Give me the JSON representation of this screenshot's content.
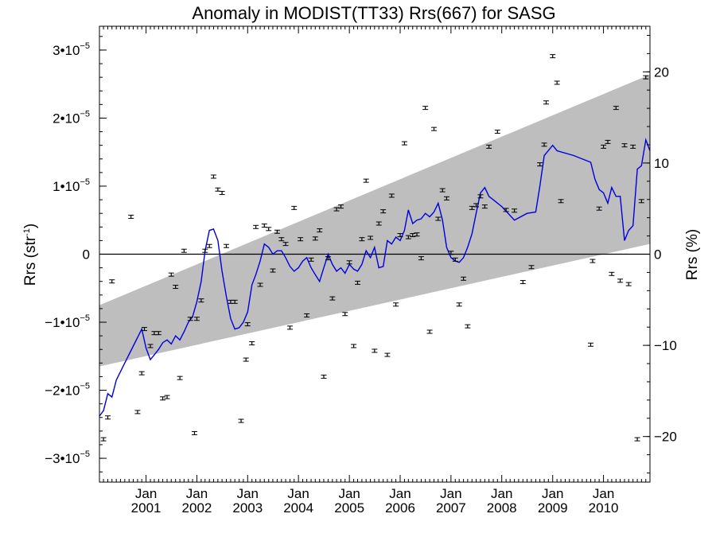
{
  "chart_data": {
    "type": "scatter",
    "title": "Anomaly in MODIST(TT33) Rrs(667) for SASG",
    "ylabel_left": {
      "base": "Rrs (str",
      "sup": "-1",
      "end": ")"
    },
    "ylabel_right": "Rrs (%)",
    "x_range": [
      "2000-02-01",
      "2010-12-01"
    ],
    "y_range": [
      -3.35e-05,
      3.35e-05
    ],
    "y2_range": [
      -25,
      25
    ],
    "x_ticks": [
      {
        "date": "2001-01-01",
        "month": "Jan",
        "year": "2001"
      },
      {
        "date": "2002-01-01",
        "month": "Jan",
        "year": "2002"
      },
      {
        "date": "2003-01-01",
        "month": "Jan",
        "year": "2003"
      },
      {
        "date": "2004-01-01",
        "month": "Jan",
        "year": "2004"
      },
      {
        "date": "2005-01-01",
        "month": "Jan",
        "year": "2005"
      },
      {
        "date": "2006-01-01",
        "month": "Jan",
        "year": "2006"
      },
      {
        "date": "2007-01-01",
        "month": "Jan",
        "year": "2007"
      },
      {
        "date": "2008-01-01",
        "month": "Jan",
        "year": "2008"
      },
      {
        "date": "2009-01-01",
        "month": "Jan",
        "year": "2009"
      },
      {
        "date": "2010-01-01",
        "month": "Jan",
        "year": "2010"
      }
    ],
    "y_ticks_left": [
      {
        "value": 3e-05,
        "mant": "3•10",
        "exp": "−5"
      },
      {
        "value": 2e-05,
        "mant": "2•10",
        "exp": "−5"
      },
      {
        "value": 1e-05,
        "mant": "1•10",
        "exp": "−5"
      },
      {
        "value": 0,
        "mant": "0",
        "exp": ""
      },
      {
        "value": -1e-05,
        "mant": "−1•10",
        "exp": "−5"
      },
      {
        "value": -2e-05,
        "mant": "−2•10",
        "exp": "−5"
      },
      {
        "value": -3e-05,
        "mant": "−3•10",
        "exp": "−5"
      }
    ],
    "y_ticks_right": [
      20,
      10,
      0,
      -10,
      -20
    ],
    "confidence_band": {
      "color": "#bebebe",
      "upper": [
        [
          "2000-02-01",
          -7.5e-06
        ],
        [
          "2010-12-01",
          2.64e-05
        ]
      ],
      "lower": [
        [
          "2000-02-01",
          -1.65e-05
        ],
        [
          "2010-12-01",
          1.5e-06
        ]
      ]
    },
    "zero_line": 0,
    "points_color": "#000000",
    "line_color": "#0000dd",
    "points": [
      [
        "2000-03-01",
        -2.72e-05
      ],
      [
        "2000-04-01",
        -2.4e-05
      ],
      [
        "2000-05-01",
        -4e-06
      ],
      [
        "2000-09-15",
        5.5e-06
      ],
      [
        "2000-11-01",
        -2.32e-05
      ],
      [
        "2000-12-01",
        -1.75e-05
      ],
      [
        "2000-12-20",
        -1.1e-05
      ],
      [
        "2001-02-01",
        -1.35e-05
      ],
      [
        "2001-03-01",
        -1.16e-05
      ],
      [
        "2001-04-01",
        -1.16e-05
      ],
      [
        "2001-05-01",
        -2.12e-05
      ],
      [
        "2001-06-01",
        -2.1e-05
      ],
      [
        "2001-07-01",
        -3e-06
      ],
      [
        "2001-08-01",
        -4.8e-06
      ],
      [
        "2001-09-01",
        -1.82e-05
      ],
      [
        "2001-10-01",
        5e-07
      ],
      [
        "2001-11-15",
        -9.5e-06
      ],
      [
        "2001-12-15",
        -2.63e-05
      ],
      [
        "2002-01-01",
        -9.5e-06
      ],
      [
        "2002-02-01",
        -6.8e-06
      ],
      [
        "2002-03-01",
        5e-07
      ],
      [
        "2002-04-01",
        1.2e-06
      ],
      [
        "2002-05-01",
        1.14e-05
      ],
      [
        "2002-06-01",
        9.5e-06
      ],
      [
        "2002-07-01",
        9e-06
      ],
      [
        "2002-08-01",
        1.2e-06
      ],
      [
        "2002-09-01",
        -7e-06
      ],
      [
        "2002-10-01",
        -7e-06
      ],
      [
        "2002-11-15",
        -2.45e-05
      ],
      [
        "2002-12-20",
        -1.55e-05
      ],
      [
        "2003-01-01",
        -1.03e-05
      ],
      [
        "2003-02-01",
        -1.31e-05
      ],
      [
        "2003-03-01",
        4e-06
      ],
      [
        "2003-04-01",
        -4.5e-06
      ],
      [
        "2003-05-01",
        4.2e-06
      ],
      [
        "2003-06-01",
        3.7e-06
      ],
      [
        "2003-07-01",
        -2.4e-06
      ],
      [
        "2003-08-01",
        3.3e-06
      ],
      [
        "2003-09-01",
        2.2e-06
      ],
      [
        "2003-10-01",
        1.5e-06
      ],
      [
        "2003-11-01",
        -1.08e-05
      ],
      [
        "2003-12-01",
        6.8e-06
      ],
      [
        "2004-01-15",
        2.2e-06
      ],
      [
        "2004-03-01",
        -9e-06
      ],
      [
        "2004-04-01",
        -8e-07
      ],
      [
        "2004-05-01",
        2.3e-06
      ],
      [
        "2004-06-01",
        3.5e-06
      ],
      [
        "2004-07-01",
        -1.8e-05
      ],
      [
        "2004-08-01",
        -6e-07
      ],
      [
        "2004-09-01",
        -6.5e-06
      ],
      [
        "2004-10-01",
        6.6e-06
      ],
      [
        "2004-11-01",
        7e-06
      ],
      [
        "2004-12-01",
        -8.8e-06
      ],
      [
        "2005-01-01",
        -1.2e-06
      ],
      [
        "2005-02-01",
        -1.35e-05
      ],
      [
        "2005-03-01",
        -4.2e-06
      ],
      [
        "2005-04-01",
        2.2e-06
      ],
      [
        "2005-05-01",
        1.08e-05
      ],
      [
        "2005-06-01",
        2.4e-06
      ],
      [
        "2005-07-01",
        -1.42e-05
      ],
      [
        "2005-08-01",
        4.5e-06
      ],
      [
        "2005-09-01",
        6.3e-06
      ],
      [
        "2005-10-01",
        -1.48e-05
      ],
      [
        "2005-11-01",
        8.6e-06
      ],
      [
        "2005-12-01",
        -7.4e-06
      ],
      [
        "2006-01-01",
        2.8e-06
      ],
      [
        "2006-02-01",
        1.63e-05
      ],
      [
        "2006-03-01",
        2.5e-06
      ],
      [
        "2006-04-01",
        2.8e-06
      ],
      [
        "2006-05-01",
        2.9e-06
      ],
      [
        "2006-06-01",
        -6e-07
      ],
      [
        "2006-07-01",
        2.15e-05
      ],
      [
        "2006-08-01",
        -1.14e-05
      ],
      [
        "2006-09-01",
        1.84e-05
      ],
      [
        "2006-10-01",
        5.2e-06
      ],
      [
        "2006-11-01",
        9.4e-06
      ],
      [
        "2006-12-01",
        8.2e-06
      ],
      [
        "2007-01-01",
        2e-07
      ],
      [
        "2007-02-01",
        -8e-07
      ],
      [
        "2007-03-01",
        -7.4e-06
      ],
      [
        "2007-04-01",
        -3.6e-06
      ],
      [
        "2007-05-01",
        -1.06e-05
      ],
      [
        "2007-06-01",
        6.8e-06
      ],
      [
        "2007-07-01",
        7.2e-06
      ],
      [
        "2007-08-01",
        8.5e-06
      ],
      [
        "2007-09-01",
        7e-06
      ],
      [
        "2007-10-01",
        1.58e-05
      ],
      [
        "2007-12-01",
        1.8e-05
      ],
      [
        "2008-02-01",
        6.5e-06
      ],
      [
        "2008-04-01",
        6.4e-06
      ],
      [
        "2008-06-01",
        -4.1e-06
      ],
      [
        "2008-08-01",
        -1.9e-06
      ],
      [
        "2008-10-01",
        1.32e-05
      ],
      [
        "2008-11-01",
        1.61e-05
      ],
      [
        "2008-11-15",
        2.23e-05
      ],
      [
        "2009-01-01",
        2.91e-05
      ],
      [
        "2009-02-01",
        2.52e-05
      ],
      [
        "2009-03-01",
        7.8e-06
      ],
      [
        "2009-10-01",
        -1.33e-05
      ],
      [
        "2009-10-15",
        -1e-06
      ],
      [
        "2009-12-01",
        6.7e-06
      ],
      [
        "2010-01-01",
        1.58e-05
      ],
      [
        "2010-02-01",
        1.65e-05
      ],
      [
        "2010-03-01",
        -2.9e-06
      ],
      [
        "2010-04-01",
        2.15e-05
      ],
      [
        "2010-05-01",
        -3.9e-06
      ],
      [
        "2010-06-01",
        1.6e-05
      ],
      [
        "2010-07-01",
        -4.4e-06
      ],
      [
        "2010-08-01",
        1.58e-05
      ],
      [
        "2010-09-01",
        -2.72e-05
      ],
      [
        "2010-10-01",
        7.8e-06
      ],
      [
        "2010-11-01",
        2.6e-05
      ]
    ],
    "line": [
      [
        "2000-02-01",
        -2.38e-05
      ],
      [
        "2000-03-01",
        -2.3e-05
      ],
      [
        "2000-04-01",
        -2.05e-05
      ],
      [
        "2000-05-01",
        -2.1e-05
      ],
      [
        "2000-06-01",
        -1.85e-05
      ],
      [
        "2000-08-01",
        -1.6e-05
      ],
      [
        "2000-10-01",
        -1.35e-05
      ],
      [
        "2000-12-01",
        -1.1e-05
      ],
      [
        "2001-01-01",
        -1.38e-05
      ],
      [
        "2001-02-01",
        -1.55e-05
      ],
      [
        "2001-03-01",
        -1.48e-05
      ],
      [
        "2001-04-01",
        -1.4e-05
      ],
      [
        "2001-05-01",
        -1.3e-05
      ],
      [
        "2001-06-01",
        -1.26e-05
      ],
      [
        "2001-07-01",
        -1.32e-05
      ],
      [
        "2001-08-01",
        -1.2e-05
      ],
      [
        "2001-09-01",
        -1.26e-05
      ],
      [
        "2001-10-01",
        -1.14e-05
      ],
      [
        "2001-11-01",
        -1e-05
      ],
      [
        "2001-12-01",
        -9.2e-06
      ],
      [
        "2002-01-01",
        -7e-06
      ],
      [
        "2002-02-01",
        -4e-06
      ],
      [
        "2002-03-01",
        5e-07
      ],
      [
        "2002-04-01",
        3.5e-06
      ],
      [
        "2002-05-01",
        3.7e-06
      ],
      [
        "2002-06-01",
        2e-06
      ],
      [
        "2002-07-01",
        -2.5e-06
      ],
      [
        "2002-08-01",
        -6.2e-06
      ],
      [
        "2002-09-01",
        -9.5e-06
      ],
      [
        "2002-10-01",
        -1.1e-05
      ],
      [
        "2002-11-01",
        -1.08e-05
      ],
      [
        "2002-12-01",
        -1e-05
      ],
      [
        "2003-01-01",
        -8.5e-06
      ],
      [
        "2003-02-01",
        -4.5e-06
      ],
      [
        "2003-03-01",
        -3e-06
      ],
      [
        "2003-04-01",
        -1e-06
      ],
      [
        "2003-05-01",
        1.5e-06
      ],
      [
        "2003-06-01",
        1e-06
      ],
      [
        "2003-07-01",
        0.0
      ],
      [
        "2003-08-01",
        5e-07
      ],
      [
        "2003-09-01",
        5e-07
      ],
      [
        "2003-10-01",
        -5e-07
      ],
      [
        "2003-11-01",
        -1.8e-06
      ],
      [
        "2003-12-01",
        -2.5e-06
      ],
      [
        "2004-01-01",
        -2e-06
      ],
      [
        "2004-02-01",
        -1e-06
      ],
      [
        "2004-03-01",
        -5e-07
      ],
      [
        "2004-04-01",
        -2e-06
      ],
      [
        "2004-05-01",
        -3e-06
      ],
      [
        "2004-06-01",
        -4e-06
      ],
      [
        "2004-07-01",
        -2e-06
      ],
      [
        "2004-08-01",
        0.0
      ],
      [
        "2004-09-01",
        -1.5e-06
      ],
      [
        "2004-10-01",
        -2.5e-06
      ],
      [
        "2004-11-01",
        -2e-06
      ],
      [
        "2004-12-01",
        -2.8e-06
      ],
      [
        "2005-01-01",
        -1.5e-06
      ],
      [
        "2005-02-01",
        -2.2e-06
      ],
      [
        "2005-03-01",
        -2.5e-06
      ],
      [
        "2005-04-01",
        -1.5e-06
      ],
      [
        "2005-05-01",
        5e-07
      ],
      [
        "2005-06-01",
        -5e-07
      ],
      [
        "2005-07-01",
        1e-06
      ],
      [
        "2005-08-01",
        -2e-06
      ],
      [
        "2005-09-01",
        -1.8e-06
      ],
      [
        "2005-10-01",
        2e-06
      ],
      [
        "2005-11-01",
        1.5e-06
      ],
      [
        "2005-12-01",
        2.5e-06
      ],
      [
        "2006-01-01",
        2e-06
      ],
      [
        "2006-02-01",
        3.5e-06
      ],
      [
        "2006-03-01",
        6.5e-06
      ],
      [
        "2006-04-01",
        4.5e-06
      ],
      [
        "2006-05-01",
        5e-06
      ],
      [
        "2006-06-01",
        5.2e-06
      ],
      [
        "2006-07-01",
        6e-06
      ],
      [
        "2006-08-01",
        5.5e-06
      ],
      [
        "2006-09-01",
        6.2e-06
      ],
      [
        "2006-10-01",
        7.5e-06
      ],
      [
        "2006-11-01",
        5e-06
      ],
      [
        "2006-12-01",
        1e-06
      ],
      [
        "2007-01-01",
        -5e-07
      ],
      [
        "2007-02-01",
        -1e-06
      ],
      [
        "2007-03-01",
        -1.2e-06
      ],
      [
        "2007-04-01",
        -5e-07
      ],
      [
        "2007-05-01",
        1e-06
      ],
      [
        "2007-06-01",
        3e-06
      ],
      [
        "2007-07-01",
        6e-06
      ],
      [
        "2007-08-01",
        9e-06
      ],
      [
        "2007-09-01",
        9.8e-06
      ],
      [
        "2007-10-01",
        8.5e-06
      ],
      [
        "2007-11-01",
        8e-06
      ],
      [
        "2008-01-01",
        7e-06
      ],
      [
        "2008-04-01",
        5e-06
      ],
      [
        "2008-07-01",
        6e-06
      ],
      [
        "2008-09-01",
        6.2e-06
      ],
      [
        "2008-10-01",
        1e-05
      ],
      [
        "2008-11-01",
        1.45e-05
      ],
      [
        "2009-01-01",
        1.6e-05
      ],
      [
        "2009-02-01",
        1.52e-05
      ],
      [
        "2009-06-01",
        1.45e-05
      ],
      [
        "2009-10-01",
        1.35e-05
      ],
      [
        "2009-11-01",
        1.1e-05
      ],
      [
        "2009-12-01",
        9.5e-06
      ],
      [
        "2010-01-01",
        9e-06
      ],
      [
        "2010-02-01",
        7.5e-06
      ],
      [
        "2010-03-01",
        9.8e-06
      ],
      [
        "2010-04-01",
        8.5e-06
      ],
      [
        "2010-05-01",
        8.5e-06
      ],
      [
        "2010-06-01",
        2e-06
      ],
      [
        "2010-07-01",
        3.5e-06
      ],
      [
        "2010-08-01",
        4.2e-06
      ],
      [
        "2010-09-01",
        1.25e-05
      ],
      [
        "2010-10-01",
        1.3e-05
      ],
      [
        "2010-11-01",
        1.68e-05
      ],
      [
        "2010-12-01",
        1.52e-05
      ]
    ]
  }
}
